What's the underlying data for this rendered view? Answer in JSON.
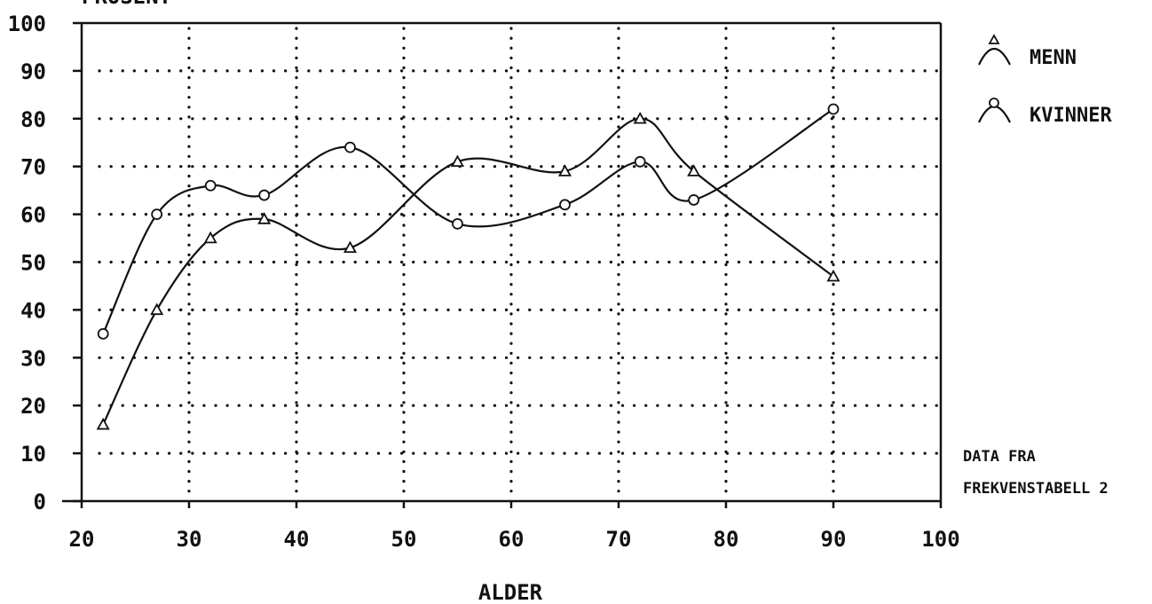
{
  "chart_data": {
    "type": "line",
    "title": "",
    "ylabel_partial": "PROSENT",
    "xlabel": "ALDER",
    "xlim": [
      20,
      100
    ],
    "ylim": [
      0,
      100
    ],
    "x_ticks": [
      20,
      30,
      40,
      50,
      60,
      70,
      80,
      90,
      100
    ],
    "y_ticks": [
      0,
      10,
      20,
      30,
      40,
      50,
      60,
      70,
      80,
      90,
      100
    ],
    "grid": true,
    "legend_position": "top-right",
    "series": [
      {
        "name": "MENN",
        "marker": "triangle",
        "x": [
          22,
          27,
          32,
          37,
          45,
          55,
          65,
          72,
          77,
          90
        ],
        "y": [
          16,
          40,
          55,
          59,
          53,
          71,
          69,
          80,
          69,
          47
        ]
      },
      {
        "name": "KVINNER",
        "marker": "circle",
        "x": [
          22,
          27,
          32,
          37,
          45,
          55,
          65,
          72,
          77,
          90
        ],
        "y": [
          35,
          60,
          66,
          64,
          74,
          58,
          62,
          71,
          63,
          82
        ]
      }
    ],
    "note_lines": [
      "DATA FRA",
      "FREKVENSTABELL 2"
    ]
  },
  "colors": {
    "ink": "#111111",
    "paper": "#ffffff"
  }
}
